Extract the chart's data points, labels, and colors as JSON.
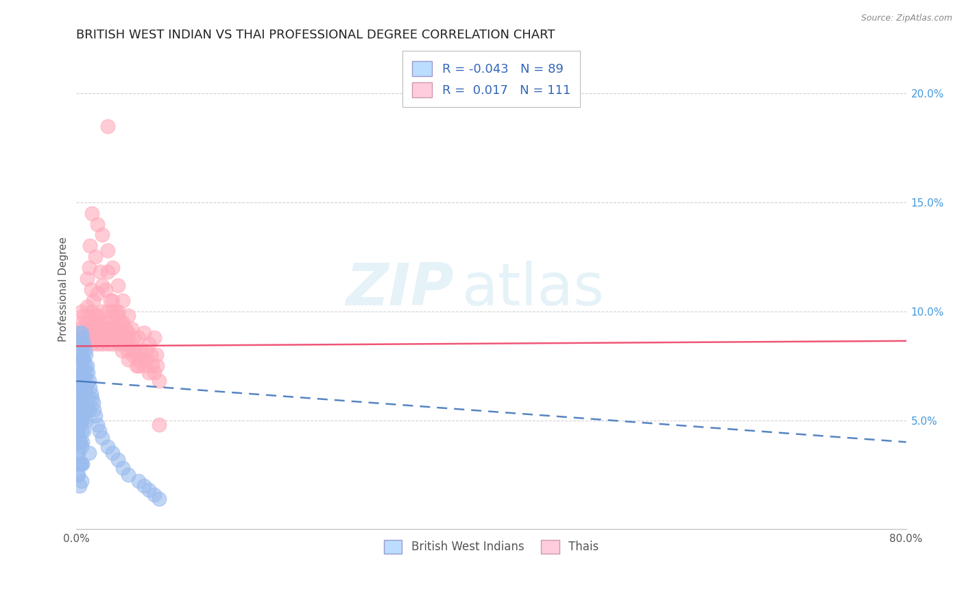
{
  "title": "BRITISH WEST INDIAN VS THAI PROFESSIONAL DEGREE CORRELATION CHART",
  "source": "Source: ZipAtlas.com",
  "ylabel": "Professional Degree",
  "xlim": [
    0.0,
    0.8
  ],
  "ylim": [
    0.0,
    0.22
  ],
  "blue_R": -0.043,
  "blue_N": 89,
  "pink_R": 0.017,
  "pink_N": 111,
  "blue_color": "#99BBEE",
  "pink_color": "#FFAABB",
  "blue_label": "British West Indians",
  "pink_label": "Thais",
  "blue_trend_color": "#4477BB",
  "pink_trend_color": "#EE4466",
  "watermark_zip": "ZIP",
  "watermark_atlas": "atlas",
  "background_color": "#ffffff",
  "grid_color": "#cccccc",
  "title_fontsize": 13,
  "axis_label_fontsize": 11,
  "tick_fontsize": 11,
  "blue_scatter_x": [
    0.001,
    0.001,
    0.001,
    0.001,
    0.002,
    0.002,
    0.002,
    0.002,
    0.002,
    0.002,
    0.003,
    0.003,
    0.003,
    0.003,
    0.003,
    0.003,
    0.003,
    0.003,
    0.003,
    0.003,
    0.004,
    0.004,
    0.004,
    0.004,
    0.004,
    0.004,
    0.004,
    0.004,
    0.005,
    0.005,
    0.005,
    0.005,
    0.005,
    0.005,
    0.005,
    0.005,
    0.005,
    0.005,
    0.005,
    0.005,
    0.006,
    0.006,
    0.006,
    0.006,
    0.006,
    0.006,
    0.006,
    0.006,
    0.007,
    0.007,
    0.007,
    0.007,
    0.007,
    0.007,
    0.008,
    0.008,
    0.008,
    0.008,
    0.009,
    0.009,
    0.009,
    0.009,
    0.01,
    0.01,
    0.01,
    0.011,
    0.011,
    0.012,
    0.012,
    0.013,
    0.014,
    0.015,
    0.016,
    0.017,
    0.018,
    0.02,
    0.022,
    0.025,
    0.03,
    0.035,
    0.04,
    0.045,
    0.05,
    0.06,
    0.065,
    0.07,
    0.075,
    0.08,
    0.012
  ],
  "blue_scatter_y": [
    0.055,
    0.045,
    0.035,
    0.025,
    0.075,
    0.065,
    0.055,
    0.045,
    0.035,
    0.025,
    0.09,
    0.08,
    0.07,
    0.065,
    0.06,
    0.055,
    0.05,
    0.04,
    0.03,
    0.02,
    0.085,
    0.078,
    0.072,
    0.065,
    0.058,
    0.05,
    0.04,
    0.03,
    0.09,
    0.085,
    0.078,
    0.072,
    0.065,
    0.06,
    0.055,
    0.05,
    0.045,
    0.038,
    0.03,
    0.022,
    0.088,
    0.08,
    0.072,
    0.065,
    0.058,
    0.05,
    0.04,
    0.03,
    0.085,
    0.078,
    0.07,
    0.063,
    0.055,
    0.045,
    0.082,
    0.075,
    0.065,
    0.055,
    0.08,
    0.072,
    0.063,
    0.05,
    0.075,
    0.067,
    0.055,
    0.072,
    0.06,
    0.068,
    0.055,
    0.065,
    0.062,
    0.06,
    0.058,
    0.055,
    0.052,
    0.048,
    0.045,
    0.042,
    0.038,
    0.035,
    0.032,
    0.028,
    0.025,
    0.022,
    0.02,
    0.018,
    0.016,
    0.014,
    0.035
  ],
  "pink_scatter_x": [
    0.002,
    0.003,
    0.004,
    0.005,
    0.005,
    0.006,
    0.007,
    0.008,
    0.009,
    0.01,
    0.01,
    0.011,
    0.012,
    0.013,
    0.014,
    0.015,
    0.015,
    0.016,
    0.017,
    0.018,
    0.019,
    0.02,
    0.02,
    0.021,
    0.022,
    0.023,
    0.024,
    0.025,
    0.025,
    0.026,
    0.027,
    0.028,
    0.029,
    0.03,
    0.03,
    0.031,
    0.032,
    0.033,
    0.034,
    0.035,
    0.035,
    0.036,
    0.037,
    0.038,
    0.039,
    0.04,
    0.041,
    0.042,
    0.043,
    0.044,
    0.045,
    0.046,
    0.047,
    0.048,
    0.049,
    0.05,
    0.05,
    0.052,
    0.053,
    0.054,
    0.055,
    0.057,
    0.058,
    0.06,
    0.06,
    0.062,
    0.063,
    0.065,
    0.065,
    0.067,
    0.068,
    0.07,
    0.07,
    0.072,
    0.073,
    0.075,
    0.075,
    0.077,
    0.078,
    0.08,
    0.013,
    0.018,
    0.023,
    0.028,
    0.033,
    0.038,
    0.043,
    0.015,
    0.02,
    0.025,
    0.03,
    0.035,
    0.04,
    0.045,
    0.05,
    0.01,
    0.012,
    0.014,
    0.016,
    0.018,
    0.02,
    0.025,
    0.03,
    0.035,
    0.04,
    0.045,
    0.05,
    0.055,
    0.06,
    0.08,
    0.03
  ],
  "pink_scatter_y": [
    0.09,
    0.085,
    0.092,
    0.1,
    0.088,
    0.095,
    0.098,
    0.092,
    0.088,
    0.095,
    0.102,
    0.09,
    0.098,
    0.092,
    0.088,
    0.1,
    0.085,
    0.092,
    0.088,
    0.095,
    0.09,
    0.098,
    0.085,
    0.092,
    0.088,
    0.095,
    0.09,
    0.1,
    0.085,
    0.092,
    0.088,
    0.095,
    0.09,
    0.1,
    0.085,
    0.092,
    0.088,
    0.095,
    0.09,
    0.1,
    0.085,
    0.092,
    0.088,
    0.095,
    0.09,
    0.098,
    0.085,
    0.092,
    0.088,
    0.082,
    0.09,
    0.085,
    0.092,
    0.088,
    0.082,
    0.09,
    0.078,
    0.085,
    0.092,
    0.08,
    0.088,
    0.082,
    0.075,
    0.088,
    0.075,
    0.082,
    0.078,
    0.09,
    0.075,
    0.082,
    0.078,
    0.085,
    0.072,
    0.08,
    0.075,
    0.088,
    0.072,
    0.08,
    0.075,
    0.068,
    0.13,
    0.125,
    0.118,
    0.11,
    0.105,
    0.1,
    0.095,
    0.145,
    0.14,
    0.135,
    0.128,
    0.12,
    0.112,
    0.105,
    0.098,
    0.115,
    0.12,
    0.11,
    0.105,
    0.098,
    0.108,
    0.112,
    0.118,
    0.105,
    0.1,
    0.095,
    0.088,
    0.082,
    0.078,
    0.048,
    0.185
  ]
}
